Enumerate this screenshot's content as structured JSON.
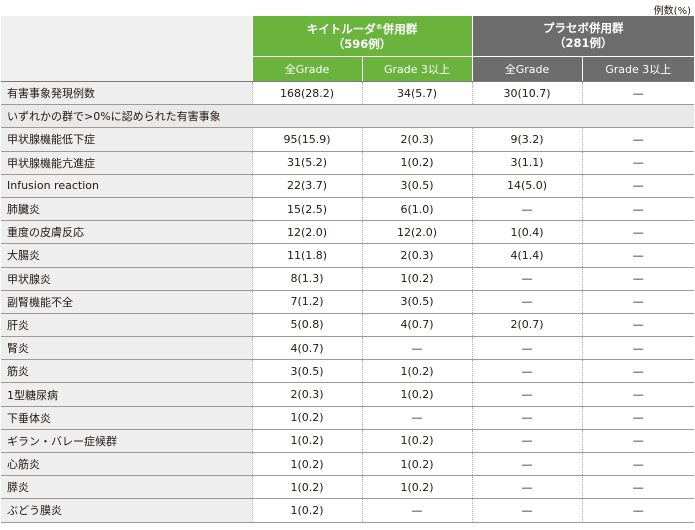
{
  "unit_label": "例数(%)",
  "groups": [
    {
      "name": "キイトルーダ",
      "reg": "®",
      "suffix": "併用群",
      "n": "（596例）"
    },
    {
      "name": "プラセボ併用群",
      "reg": "",
      "suffix": "",
      "n": "（281例）"
    }
  ],
  "subheaders": [
    "全Grade",
    "Grade 3以上",
    "全Grade",
    "Grade 3以上"
  ],
  "total_row": {
    "label": "有害事象発現例数",
    "values": [
      "168(28.2)",
      "34(5.7)",
      "30(10.7)",
      "—"
    ]
  },
  "section_label": "いずれかの群で>0%に認められた有害事象",
  "rows": [
    {
      "label": "甲状腺機能低下症",
      "values": [
        "95(15.9)",
        "2(0.3)",
        "9(3.2)",
        "—"
      ]
    },
    {
      "label": "甲状腺機能亢進症",
      "values": [
        "31(5.2)",
        "1(0.2)",
        "3(1.1)",
        "—"
      ]
    },
    {
      "label": "Infusion reaction",
      "values": [
        "22(3.7)",
        "3(0.5)",
        "14(5.0)",
        "—"
      ]
    },
    {
      "label": "肺臓炎",
      "values": [
        "15(2.5)",
        "6(1.0)",
        "—",
        "—"
      ]
    },
    {
      "label": "重度の皮膚反応",
      "values": [
        "12(2.0)",
        "12(2.0)",
        "1(0.4)",
        "—"
      ]
    },
    {
      "label": "大腸炎",
      "values": [
        "11(1.8)",
        "2(0.3)",
        "4(1.4)",
        "—"
      ]
    },
    {
      "label": "甲状腺炎",
      "values": [
        "8(1.3)",
        "1(0.2)",
        "—",
        "—"
      ]
    },
    {
      "label": "副腎機能不全",
      "values": [
        "7(1.2)",
        "3(0.5)",
        "—",
        "—"
      ]
    },
    {
      "label": "肝炎",
      "values": [
        "5(0.8)",
        "4(0.7)",
        "2(0.7)",
        "—"
      ]
    },
    {
      "label": "腎炎",
      "values": [
        "4(0.7)",
        "—",
        "—",
        "—"
      ]
    },
    {
      "label": "筋炎",
      "values": [
        "3(0.5)",
        "1(0.2)",
        "—",
        "—"
      ]
    },
    {
      "label": "1型糖尿病",
      "values": [
        "2(0.3)",
        "1(0.2)",
        "—",
        "—"
      ]
    },
    {
      "label": "下垂体炎",
      "values": [
        "1(0.2)",
        "—",
        "—",
        "—"
      ]
    },
    {
      "label": "ギラン・バレー症候群",
      "values": [
        "1(0.2)",
        "1(0.2)",
        "—",
        "—"
      ]
    },
    {
      "label": "心筋炎",
      "values": [
        "1(0.2)",
        "1(0.2)",
        "—",
        "—"
      ]
    },
    {
      "label": "膵炎",
      "values": [
        "1(0.2)",
        "1(0.2)",
        "—",
        "—"
      ]
    },
    {
      "label": "ぶどう膜炎",
      "values": [
        "1(0.2)",
        "—",
        "—",
        "—"
      ]
    }
  ],
  "colors": {
    "green": "#6ab43e",
    "gray": "#6d6d6d",
    "label_bg": "#eeeeee"
  }
}
